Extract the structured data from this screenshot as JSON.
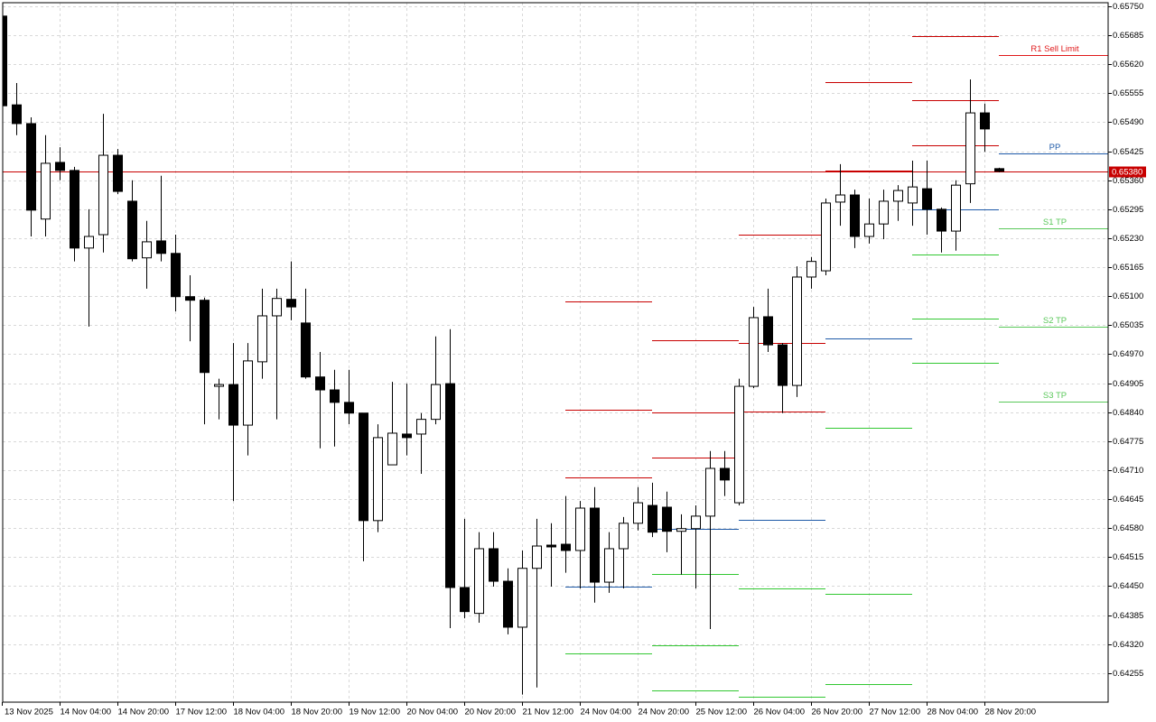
{
  "chart_data": {
    "type": "candlestick",
    "ylim": [
      0.6419,
      0.65758
    ],
    "yticks": [
      {
        "value": 0.6575,
        "label": "0.65750"
      },
      0.65685,
      {
        "value": 0.6562,
        "label": "0.65620"
      },
      0.65555,
      {
        "value": 0.6549,
        "label": "0.65490"
      },
      0.65425,
      {
        "value": 0.6536,
        "label": "0.65360"
      },
      0.65295,
      {
        "value": 0.6523,
        "label": "0.65230"
      },
      0.65165,
      {
        "value": 0.651,
        "label": "0.65100"
      },
      0.65035,
      {
        "value": 0.6497,
        "label": "0.64970"
      },
      0.64905,
      {
        "value": 0.6484,
        "label": "0.64840"
      },
      0.64775,
      {
        "value": 0.6471,
        "label": "0.64710"
      },
      0.64645,
      {
        "value": 0.6458,
        "label": "0.64580"
      },
      0.64515,
      {
        "value": 0.6445,
        "label": "0.64450"
      },
      0.64385,
      {
        "value": 0.6432,
        "label": "0.64320"
      },
      0.64255
    ],
    "xticks": [
      {
        "value": 0,
        "label": "13 Nov 2025"
      },
      {
        "value": 4,
        "label": "14 Nov 04:00"
      },
      {
        "value": 8,
        "label": "14 Nov 20:00"
      },
      {
        "value": 12,
        "label": "17 Nov 12:00"
      },
      {
        "value": 16,
        "label": "18 Nov 04:00"
      },
      {
        "value": 20,
        "label": "18 Nov 20:00"
      },
      {
        "value": 24,
        "label": "19 Nov 12:00"
      },
      {
        "value": 28,
        "label": "20 Nov 04:00"
      },
      {
        "value": 32,
        "label": "20 Nov 20:00"
      },
      {
        "value": 36,
        "label": "21 Nov 12:00"
      },
      {
        "value": 40,
        "label": "24 Nov 04:00"
      },
      {
        "value": 44,
        "label": "24 Nov 20:00"
      },
      {
        "value": 48,
        "label": "25 Nov 12:00"
      },
      {
        "value": 52,
        "label": "26 Nov 04:00"
      },
      {
        "value": 56,
        "label": "26 Nov 20:00"
      },
      {
        "value": 60,
        "label": "27 Nov 12:00"
      },
      {
        "value": 64,
        "label": "28 Nov 04:00"
      },
      {
        "value": 68,
        "label": "28 Nov 20:00"
      }
    ],
    "grid": true,
    "up_color": "#ffffff",
    "down_color": "#000000",
    "open": [
      0.65728,
      0.65529,
      0.65487,
      0.65273,
      0.654,
      0.65382,
      0.65208,
      0.65238,
      0.65416,
      0.65313,
      0.65186,
      0.65224,
      0.65196,
      0.65099,
      0.65091,
      0.64898,
      0.64902,
      0.64811,
      0.64953,
      0.65056,
      0.65093,
      0.6504,
      0.64919,
      0.6489,
      0.64862,
      0.64838,
      0.64597,
      0.64722,
      0.64791,
      0.64791,
      0.64824,
      0.64904,
      0.64447,
      0.64389,
      0.64534,
      0.64461,
      0.64358,
      0.6449,
      0.64542,
      0.64544,
      0.6453,
      0.64625,
      0.64459,
      0.64534,
      0.64591,
      0.64631,
      0.64627,
      0.64573,
      0.64579,
      0.64607,
      0.64714,
      0.64637,
      0.64898,
      0.65054,
      0.64991,
      0.649,
      0.65143,
      0.65157,
      0.65311,
      0.65327,
      0.65234,
      0.65262,
      0.65313,
      0.65309,
      0.65341,
      0.65295,
      0.65246,
      0.65352,
      0.65511,
      0.65386
    ],
    "high": [
      0.65728,
      0.65578,
      0.65501,
      0.65461,
      0.65434,
      0.6539,
      0.65295,
      0.65509,
      0.6543,
      0.6536,
      0.65269,
      0.6537,
      0.65238,
      0.65147,
      0.65097,
      0.64915,
      0.64995,
      0.64995,
      0.65117,
      0.65117,
      0.65178,
      0.65117,
      0.64975,
      0.64935,
      0.64935,
      0.64838,
      0.64813,
      0.64908,
      0.64904,
      0.64838,
      0.6501,
      0.65026,
      0.64601,
      0.64571,
      0.64571,
      0.6449,
      0.6453,
      0.64601,
      0.64591,
      0.64652,
      0.64641,
      0.64672,
      0.64571,
      0.64605,
      0.64672,
      0.64682,
      0.64662,
      0.64611,
      0.64631,
      0.64753,
      0.64753,
      0.64915,
      0.65076,
      0.65117,
      0.64995,
      0.65167,
      0.65188,
      0.65319,
      0.65396,
      0.65339,
      0.65319,
      0.65339,
      0.65349,
      0.65404,
      0.65404,
      0.65299,
      0.6536,
      0.65586,
      0.65532,
      0.65388
    ],
    "low": [
      0.65521,
      0.65461,
      0.65234,
      0.65234,
      0.6536,
      0.65178,
      0.65032,
      0.65198,
      0.65329,
      0.65178,
      0.65117,
      0.65178,
      0.65066,
      0.64999,
      0.64813,
      0.64824,
      0.64641,
      0.64743,
      0.64915,
      0.64824,
      0.65046,
      0.64915,
      0.64759,
      0.64763,
      0.64813,
      0.64506,
      0.64571,
      0.64722,
      0.64743,
      0.64702,
      0.64813,
      0.64356,
      0.64378,
      0.64368,
      0.64449,
      0.64342,
      0.64207,
      0.64223,
      0.64449,
      0.6448,
      0.64445,
      0.64413,
      0.64435,
      0.64445,
      0.64575,
      0.6456,
      0.64526,
      0.64476,
      0.64445,
      0.64354,
      0.64652,
      0.64631,
      0.64894,
      0.64975,
      0.64838,
      0.64874,
      0.65117,
      0.65147,
      0.65258,
      0.65208,
      0.65218,
      0.65228,
      0.65269,
      0.65258,
      0.65238,
      0.65198,
      0.65202,
      0.65309,
      0.65424,
      0.65378
    ],
    "close": [
      0.65527,
      0.65487,
      0.65293,
      0.65398,
      0.65382,
      0.65208,
      0.65234,
      0.65416,
      0.65335,
      0.65184,
      0.65222,
      0.65196,
      0.65099,
      0.65091,
      0.64929,
      0.64902,
      0.64811,
      0.64955,
      0.65056,
      0.65095,
      0.65076,
      0.64919,
      0.6489,
      0.64862,
      0.64838,
      0.64597,
      0.64783,
      0.64793,
      0.64783,
      0.64824,
      0.64902,
      0.64447,
      0.64393,
      0.64534,
      0.64461,
      0.64358,
      0.6449,
      0.6454,
      0.64538,
      0.6453,
      0.64625,
      0.64459,
      0.64534,
      0.64591,
      0.64637,
      0.64571,
      0.64573,
      0.64579,
      0.64607,
      0.64714,
      0.64688,
      0.64898,
      0.65052,
      0.64991,
      0.649,
      0.65143,
      0.65178,
      0.65309,
      0.65327,
      0.65234,
      0.65262,
      0.65313,
      0.65337,
      0.65345,
      0.65295,
      0.65246,
      0.65349,
      0.65511,
      0.65475,
      0.6538
    ],
    "current_price": {
      "value": 0.6538,
      "label": "0.65380",
      "color": "#c80000"
    },
    "levels": [
      {
        "color": "#c80000",
        "from": 39,
        "to": 45,
        "value": 0.65088
      },
      {
        "color": "#c80000",
        "from": 39,
        "to": 45,
        "value": 0.64846
      },
      {
        "color": "#c80000",
        "from": 39,
        "to": 45,
        "value": 0.64694
      },
      {
        "color": "#1e5aa8",
        "from": 39,
        "to": 45,
        "value": 0.64449
      },
      {
        "color": "#32c832",
        "from": 39,
        "to": 45,
        "value": 0.643
      },
      {
        "color": "#c80000",
        "from": 45,
        "to": 51,
        "value": 0.65002
      },
      {
        "color": "#c80000",
        "from": 45,
        "to": 51,
        "value": 0.6484
      },
      {
        "color": "#c80000",
        "from": 45,
        "to": 51,
        "value": 0.64738
      },
      {
        "color": "#1e5aa8",
        "from": 45,
        "to": 51,
        "value": 0.64579
      },
      {
        "color": "#32c832",
        "from": 45,
        "to": 51,
        "value": 0.64478
      },
      {
        "color": "#32c832",
        "from": 45,
        "to": 51,
        "value": 0.64318
      },
      {
        "color": "#32c832",
        "from": 45,
        "to": 51,
        "value": 0.64217
      },
      {
        "color": "#c80000",
        "from": 51,
        "to": 57,
        "value": 0.65238
      },
      {
        "color": "#c80000",
        "from": 51,
        "to": 57,
        "value": 0.64995
      },
      {
        "color": "#c80000",
        "from": 51,
        "to": 57,
        "value": 0.64842
      },
      {
        "color": "#1e5aa8",
        "from": 51,
        "to": 57,
        "value": 0.64599
      },
      {
        "color": "#32c832",
        "from": 51,
        "to": 57,
        "value": 0.64445
      },
      {
        "color": "#32c832",
        "from": 51,
        "to": 57,
        "value": 0.64202
      },
      {
        "color": "#c80000",
        "from": 57,
        "to": 63,
        "value": 0.6558
      },
      {
        "color": "#c80000",
        "from": 57,
        "to": 63,
        "value": 0.65382
      },
      {
        "color": "#1e5aa8",
        "from": 57,
        "to": 63,
        "value": 0.65006
      },
      {
        "color": "#32c832",
        "from": 57,
        "to": 63,
        "value": 0.64805
      },
      {
        "color": "#32c832",
        "from": 57,
        "to": 63,
        "value": 0.64433
      },
      {
        "color": "#32c832",
        "from": 57,
        "to": 63,
        "value": 0.64231
      },
      {
        "color": "#c80000",
        "from": 63,
        "to": 69,
        "value": 0.65683
      },
      {
        "color": "#c80000",
        "from": 63,
        "to": 69,
        "value": 0.6554
      },
      {
        "color": "#c80000",
        "from": 63,
        "to": 69,
        "value": 0.65438
      },
      {
        "color": "#1e5aa8",
        "from": 63,
        "to": 69,
        "value": 0.65295
      },
      {
        "color": "#32c832",
        "from": 63,
        "to": 69,
        "value": 0.65194
      },
      {
        "color": "#32c832",
        "from": 63,
        "to": 69,
        "value": 0.6505
      },
      {
        "color": "#32c832",
        "from": 63,
        "to": 69,
        "value": 0.64951
      },
      {
        "color": "#e0191b",
        "from": 69,
        "value": 0.65641,
        "label": "R1 Sell Limit"
      },
      {
        "color": "#1e5aa8",
        "from": 69,
        "value": 0.6542,
        "label": "PP"
      },
      {
        "color": "#5ac85a",
        "from": 69,
        "value": 0.65252,
        "label": "S1 TP"
      },
      {
        "color": "#5ac85a",
        "from": 69,
        "value": 0.65032,
        "label": "S2 TP"
      },
      {
        "color": "#5ac85a",
        "from": 69,
        "value": 0.64864,
        "label": "S3 TP"
      }
    ]
  }
}
